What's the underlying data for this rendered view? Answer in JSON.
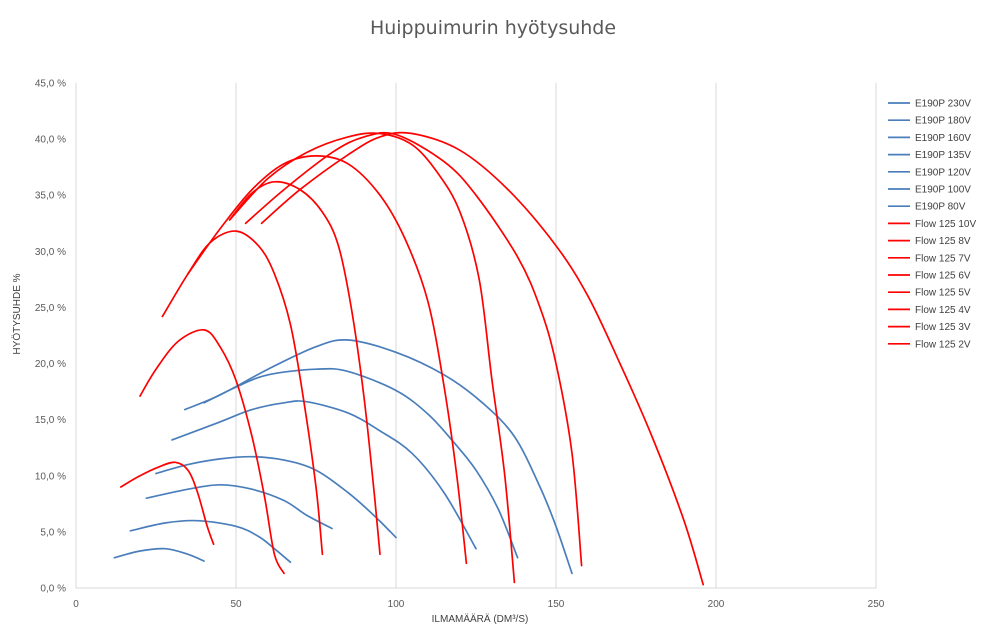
{
  "chart_data": {
    "type": "line",
    "title": "Huippuimurin hyötysuhde",
    "xlabel": "ILMAMÄÄRÄ (DM³/S)",
    "ylabel": "HYÖTYSUHDE %",
    "xlim": [
      0,
      250
    ],
    "ylim": [
      0,
      45
    ],
    "x_ticks": [
      "0",
      "50",
      "100",
      "150",
      "200",
      "250"
    ],
    "y_ticks": [
      "0,0 %",
      "5,0 %",
      "10,0 %",
      "15,0 %",
      "20,0 %",
      "25,0 %",
      "30,0 %",
      "35,0 %",
      "40,0 %",
      "45,0 %"
    ],
    "grid": "vertical",
    "legend_position": "right",
    "colors": {
      "blue": "#4a7ebb",
      "red": "#ff0000",
      "grid": "#d9d9d9"
    },
    "series": [
      {
        "name": "E190P 230V",
        "color": "#4a7ebb",
        "points": [
          [
            34,
            15.9
          ],
          [
            45,
            17.2
          ],
          [
            60,
            19.5
          ],
          [
            75,
            21.5
          ],
          [
            85,
            22.1
          ],
          [
            100,
            21.0
          ],
          [
            115,
            19.0
          ],
          [
            127,
            16.5
          ],
          [
            137,
            13.5
          ],
          [
            145,
            9.0
          ],
          [
            150,
            5.5
          ],
          [
            155,
            1.3
          ]
        ]
      },
      {
        "name": "E190P 180V",
        "color": "#4a7ebb",
        "points": [
          [
            40,
            16.5
          ],
          [
            50,
            17.9
          ],
          [
            60,
            19.0
          ],
          [
            75,
            19.5
          ],
          [
            85,
            19.3
          ],
          [
            100,
            17.6
          ],
          [
            110,
            15.5
          ],
          [
            118,
            13.0
          ],
          [
            125,
            10.5
          ],
          [
            132,
            7.0
          ],
          [
            138,
            2.7
          ]
        ]
      },
      {
        "name": "E190P 160V",
        "color": "#4a7ebb",
        "points": [
          [
            30,
            13.2
          ],
          [
            45,
            14.8
          ],
          [
            55,
            15.9
          ],
          [
            65,
            16.5
          ],
          [
            72,
            16.6
          ],
          [
            85,
            15.6
          ],
          [
            95,
            14.0
          ],
          [
            105,
            12.0
          ],
          [
            115,
            8.5
          ],
          [
            125,
            3.5
          ]
        ]
      },
      {
        "name": "E190P 135V",
        "color": "#4a7ebb",
        "points": [
          [
            25,
            10.2
          ],
          [
            35,
            11.0
          ],
          [
            45,
            11.5
          ],
          [
            55,
            11.7
          ],
          [
            65,
            11.4
          ],
          [
            75,
            10.5
          ],
          [
            85,
            8.5
          ],
          [
            93,
            6.5
          ],
          [
            100,
            4.5
          ]
        ]
      },
      {
        "name": "E190P 120V",
        "color": "#4a7ebb",
        "points": [
          [
            22,
            8.0
          ],
          [
            35,
            8.8
          ],
          [
            45,
            9.2
          ],
          [
            55,
            8.8
          ],
          [
            65,
            7.8
          ],
          [
            72,
            6.5
          ],
          [
            80,
            5.3
          ]
        ]
      },
      {
        "name": "E190P 100V",
        "color": "#4a7ebb",
        "points": [
          [
            17,
            5.1
          ],
          [
            28,
            5.8
          ],
          [
            38,
            6.0
          ],
          [
            50,
            5.5
          ],
          [
            57,
            4.6
          ],
          [
            62,
            3.5
          ],
          [
            67,
            2.3
          ]
        ]
      },
      {
        "name": "E190P 80V",
        "color": "#4a7ebb",
        "points": [
          [
            12,
            2.7
          ],
          [
            20,
            3.3
          ],
          [
            28,
            3.5
          ],
          [
            35,
            3.0
          ],
          [
            40,
            2.4
          ]
        ]
      },
      {
        "name": "Flow 125 10V",
        "color": "#ff0000",
        "points": [
          [
            58,
            32.5
          ],
          [
            70,
            35.5
          ],
          [
            85,
            38.6
          ],
          [
            95,
            40.2
          ],
          [
            105,
            40.5
          ],
          [
            120,
            39.0
          ],
          [
            135,
            35.5
          ],
          [
            150,
            30.5
          ],
          [
            160,
            26.0
          ],
          [
            170,
            20.0
          ],
          [
            180,
            13.5
          ],
          [
            190,
            6.0
          ],
          [
            196,
            0.3
          ]
        ]
      },
      {
        "name": "Flow 125 8V",
        "color": "#ff0000",
        "points": [
          [
            53,
            32.5
          ],
          [
            65,
            35.5
          ],
          [
            80,
            38.8
          ],
          [
            90,
            40.2
          ],
          [
            100,
            40.4
          ],
          [
            115,
            38.0
          ],
          [
            125,
            35.0
          ],
          [
            138,
            29.5
          ],
          [
            145,
            25.0
          ],
          [
            150,
            20.0
          ],
          [
            155,
            12.0
          ],
          [
            158,
            2.0
          ]
        ]
      },
      {
        "name": "Flow 125 7V",
        "color": "#ff0000",
        "points": [
          [
            48,
            32.8
          ],
          [
            60,
            36.5
          ],
          [
            72,
            38.8
          ],
          [
            85,
            40.2
          ],
          [
            95,
            40.5
          ],
          [
            105,
            39.5
          ],
          [
            113,
            37.0
          ],
          [
            120,
            33.5
          ],
          [
            126,
            27.5
          ],
          [
            130,
            18.5
          ],
          [
            134,
            10.0
          ],
          [
            137,
            0.5
          ]
        ]
      },
      {
        "name": "Flow 125 6V",
        "color": "#ff0000",
        "points": [
          [
            35,
            28.0
          ],
          [
            45,
            32.0
          ],
          [
            55,
            35.5
          ],
          [
            65,
            37.8
          ],
          [
            75,
            38.5
          ],
          [
            85,
            37.8
          ],
          [
            95,
            35.0
          ],
          [
            103,
            31.0
          ],
          [
            110,
            25.5
          ],
          [
            115,
            18.0
          ],
          [
            119,
            10.0
          ],
          [
            122,
            2.2
          ]
        ]
      },
      {
        "name": "Flow 125 5V",
        "color": "#ff0000",
        "points": [
          [
            48,
            32.8
          ],
          [
            55,
            35.2
          ],
          [
            62,
            36.2
          ],
          [
            70,
            35.5
          ],
          [
            77,
            33.5
          ],
          [
            82,
            30.5
          ],
          [
            86,
            25.0
          ],
          [
            90,
            17.0
          ],
          [
            93,
            9.0
          ],
          [
            95,
            3.0
          ]
        ]
      },
      {
        "name": "Flow 125 4V",
        "color": "#ff0000",
        "points": [
          [
            27,
            24.2
          ],
          [
            35,
            28.0
          ],
          [
            42,
            30.8
          ],
          [
            50,
            31.8
          ],
          [
            57,
            30.5
          ],
          [
            62,
            28.0
          ],
          [
            67,
            23.5
          ],
          [
            71,
            17.0
          ],
          [
            75,
            9.0
          ],
          [
            77,
            3.0
          ]
        ]
      },
      {
        "name": "Flow 125 3V",
        "color": "#ff0000",
        "points": [
          [
            20,
            17.1
          ],
          [
            25,
            19.5
          ],
          [
            32,
            22.0
          ],
          [
            40,
            23.0
          ],
          [
            45,
            21.5
          ],
          [
            50,
            18.5
          ],
          [
            55,
            13.5
          ],
          [
            59,
            8.0
          ],
          [
            62,
            3.0
          ],
          [
            65,
            1.3
          ]
        ]
      },
      {
        "name": "Flow 125 2V",
        "color": "#ff0000",
        "points": [
          [
            14,
            9.0
          ],
          [
            20,
            10.0
          ],
          [
            26,
            10.8
          ],
          [
            31,
            11.2
          ],
          [
            35,
            10.5
          ],
          [
            38,
            8.5
          ],
          [
            41,
            5.5
          ],
          [
            43,
            3.9
          ]
        ]
      }
    ]
  }
}
